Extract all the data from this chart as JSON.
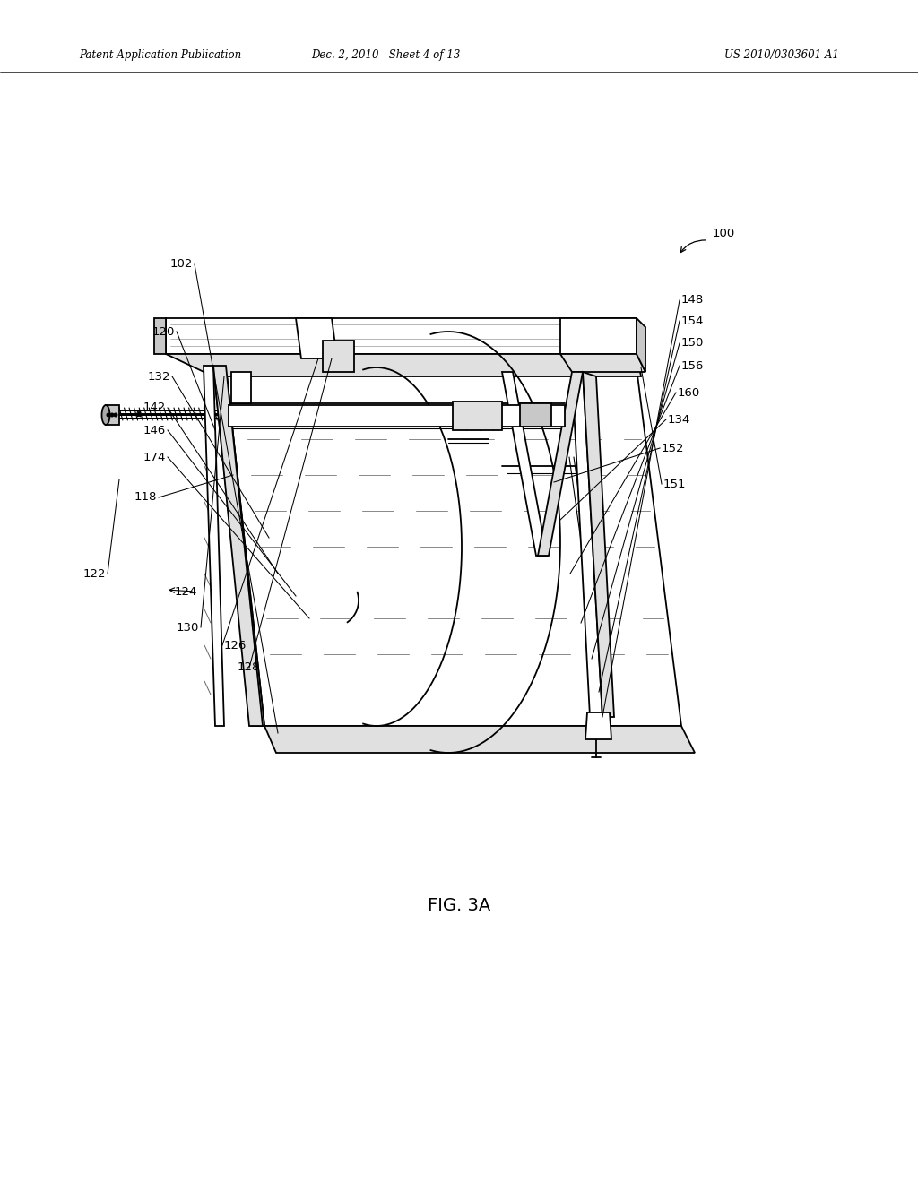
{
  "bg_color": "#ffffff",
  "patent_header_left": "Patent Application Publication",
  "patent_header_mid": "Dec. 2, 2010   Sheet 4 of 13",
  "patent_header_right": "US 2010/0303601 A1",
  "fig_label": "FIG. 3A",
  "lw": 1.3,
  "lw2": 0.8,
  "lw3": 2.0,
  "label_fs": 9.5,
  "header_fs": 8.5
}
